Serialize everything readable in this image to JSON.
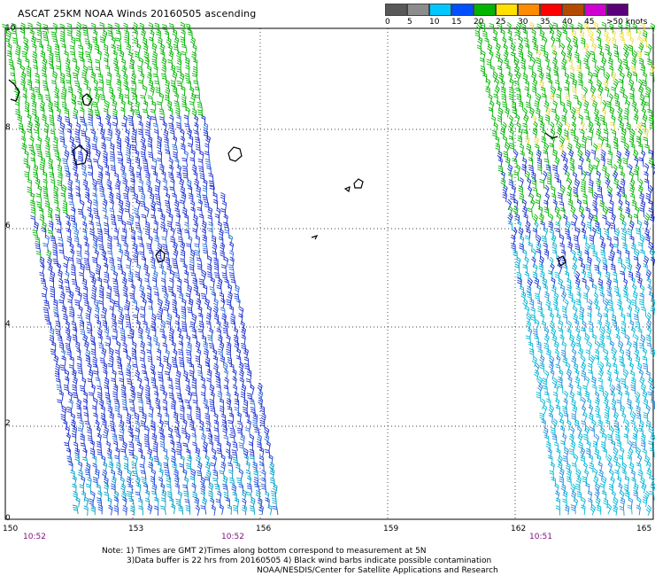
{
  "title": "ASCAT 25KM NOAA Winds 20160505 ascending",
  "legend": {
    "labels": [
      "0",
      "5",
      "10",
      "15",
      "20",
      "25",
      "30",
      "35",
      "40",
      "45",
      ">50 knots"
    ],
    "colors": [
      "#585858",
      "#8c8c8c",
      "#00c8ff",
      "#0050ff",
      "#00b400",
      "#ffe000",
      "#ff8c00",
      "#ff0000",
      "#b44a00",
      "#d000d0",
      "#5a0078"
    ]
  },
  "axes": {
    "x_ticks": [
      "150",
      "153",
      "156",
      "159",
      "162",
      "165"
    ],
    "y_ticks": [
      "10",
      "8",
      "6",
      "4",
      "2",
      "0"
    ]
  },
  "times": [
    "10:52",
    "10:52",
    "10:51"
  ],
  "notes": [
    "Note: 1) Times are GMT 2)Times along bottom correspond to measurement at 5N",
    "3)Data buffer is 22 hrs from 20160505 4) Black wind barbs indicate possible contamination",
    "NOAA/NESDIS/Center for Satellite Applications and Research"
  ],
  "swaths": [
    {
      "name": "west-swath",
      "region": "150E-156E",
      "dominant_colors": [
        "#00b400",
        "#0050ff",
        "#00c8ff"
      ]
    },
    {
      "name": "east-swath",
      "region": "162E-165E",
      "dominant_colors": [
        "#00b400",
        "#ffe000",
        "#0050ff",
        "#00c8ff"
      ]
    }
  ]
}
